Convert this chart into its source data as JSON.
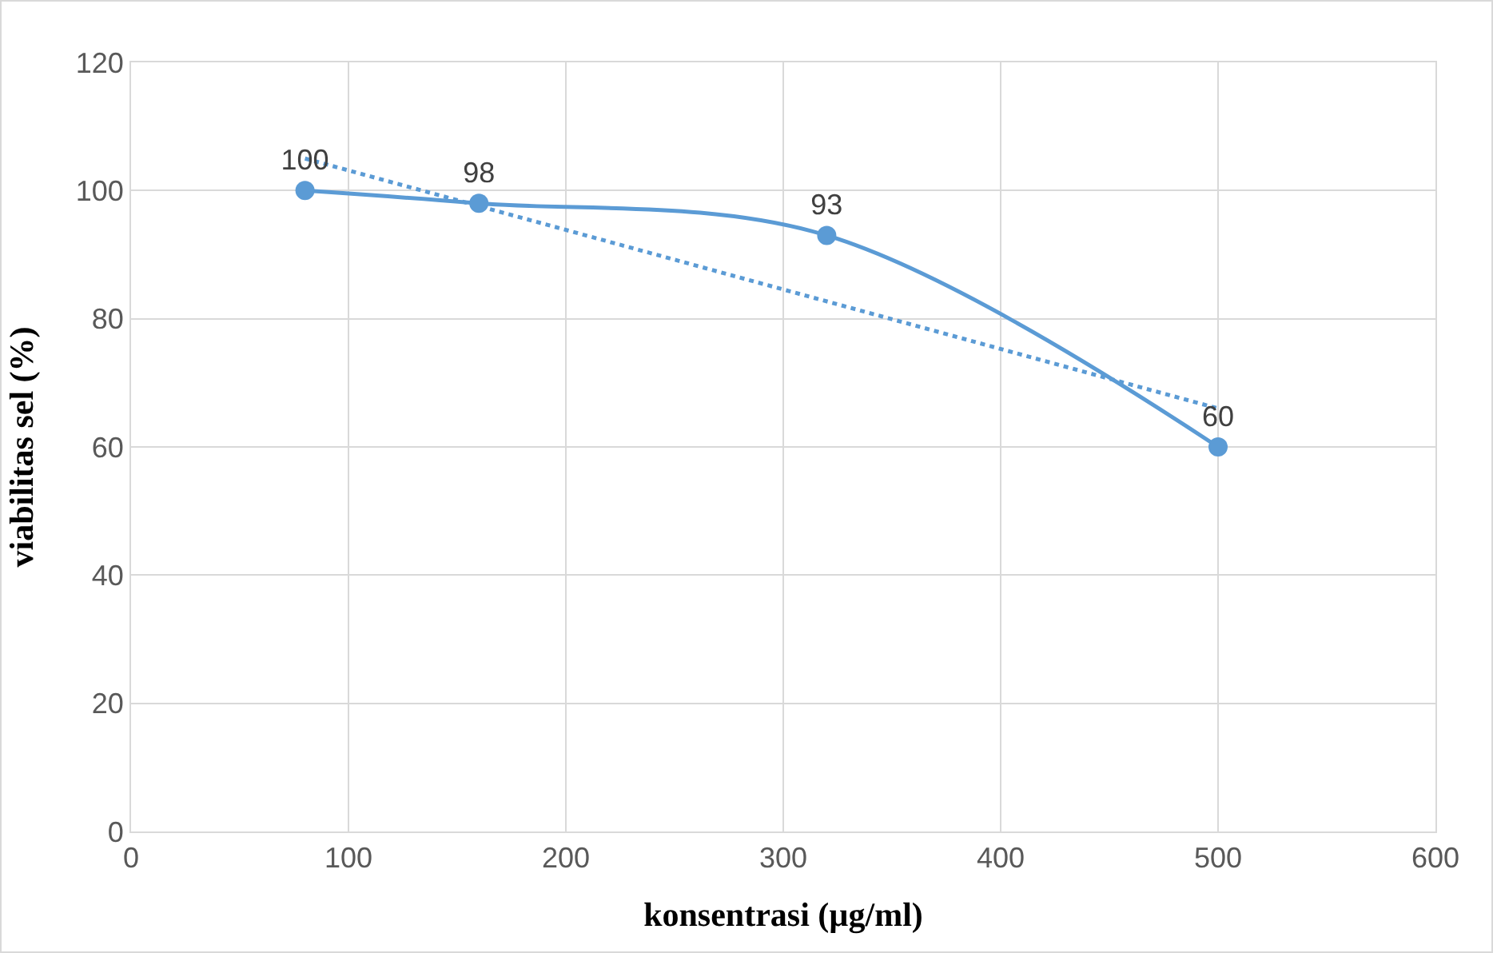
{
  "chart_data": {
    "type": "line",
    "xlabel": "konsentrasi (µg/ml)",
    "ylabel": "viabilitas sel (%)",
    "xlim": [
      0,
      600
    ],
    "xticks": [
      0,
      100,
      200,
      300,
      400,
      500,
      600
    ],
    "ylim": [
      0,
      120
    ],
    "yticks": [
      0,
      20,
      40,
      60,
      80,
      100,
      120
    ],
    "grid": true,
    "series": [
      {
        "color": "#5b9bd5",
        "x": [
          80,
          160,
          320,
          500
        ],
        "values": [
          100,
          98,
          93,
          60
        ],
        "marker": "circle",
        "line_style": "solid",
        "data_labels": true
      },
      {
        "type": "line",
        "color": "#5b9bd5",
        "x": [
          80,
          500
        ],
        "values": [
          105,
          66
        ],
        "marker": "none",
        "line_style": "dotted"
      }
    ]
  }
}
